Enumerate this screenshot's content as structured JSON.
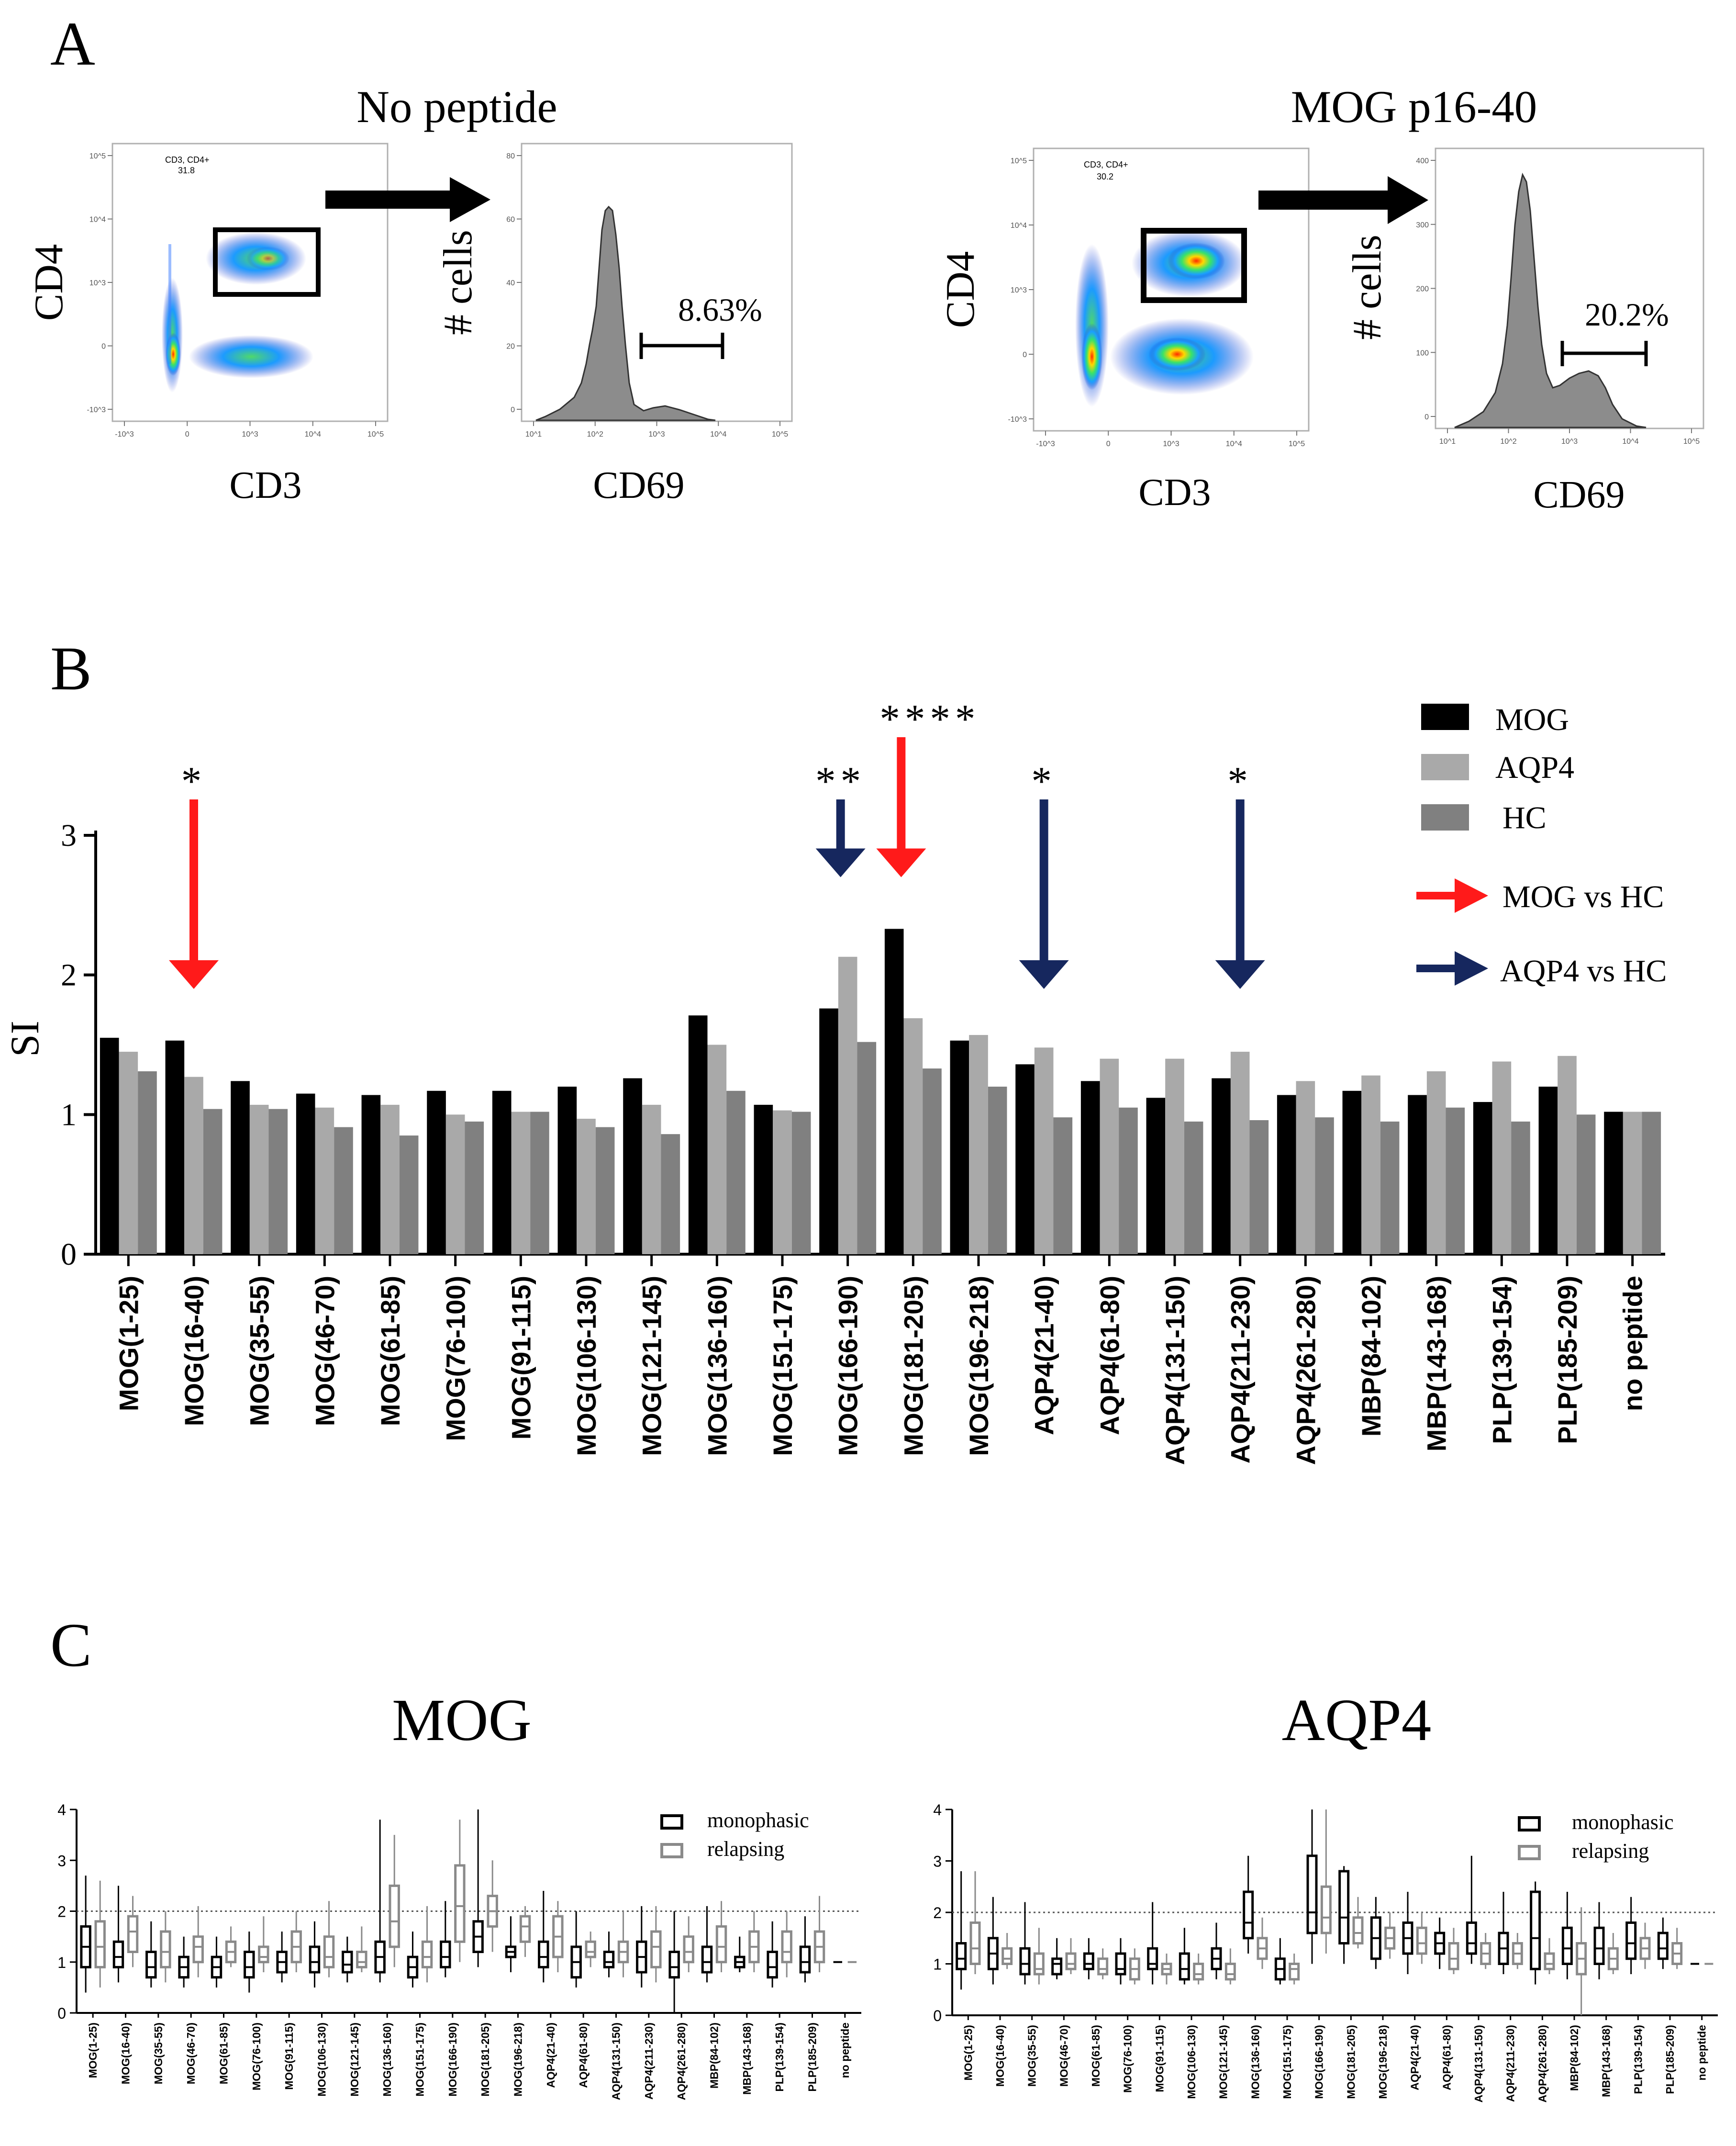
{
  "panel_labels": {
    "a": "A",
    "b": "B",
    "c": "C"
  },
  "panel_a": {
    "left": {
      "title": "No peptide",
      "dot_ylabel": "CD4",
      "dot_xlabel": "CD3",
      "gate_text_1": "CD3, CD4+",
      "gate_text_2": "31.8",
      "hist_ylabel": "# cells",
      "hist_xlabel": "CD69",
      "percent": "8.63%",
      "dot_yticks": [
        "10^5",
        "10^4",
        "10^3",
        "0",
        "-10^3"
      ],
      "dot_xticks": [
        "-10^3",
        "0",
        "10^3",
        "10^4",
        "10^5"
      ],
      "hist_yticks": [
        "80",
        "60",
        "40",
        "20",
        "0"
      ],
      "hist_xticks": [
        "10^1",
        "10^2",
        "10^3",
        "10^4",
        "10^5"
      ]
    },
    "right": {
      "title": "MOG p16-40",
      "dot_ylabel": "CD4",
      "dot_xlabel": "CD3",
      "gate_text_1": "CD3, CD4+",
      "gate_text_2": "30.2",
      "hist_ylabel": "# cells",
      "hist_xlabel": "CD69",
      "percent": "20.2%",
      "dot_yticks": [
        "10^5",
        "10^4",
        "10^3",
        "0",
        "-10^3"
      ],
      "dot_xticks": [
        "-10^3",
        "0",
        "10^3",
        "10^4",
        "10^5"
      ],
      "hist_yticks": [
        "400",
        "300",
        "200",
        "100",
        "0"
      ],
      "hist_xticks": [
        "10^1",
        "10^2",
        "10^3",
        "10^4",
        "10^5"
      ]
    }
  },
  "legend_b": {
    "mog": "MOG",
    "aqp4": "AQP4",
    "hc": "HC",
    "mog_vs_hc": "MOG vs HC",
    "aqp4_vs_hc": "AQP4 vs HC"
  },
  "colors": {
    "mog": "#000000",
    "aqp4": "#a9a9a9",
    "hc": "#808080",
    "red_arrow": "#ff1a1a",
    "navy_arrow": "#16275e"
  },
  "chart_data": [
    {
      "type": "bar",
      "title": "",
      "ylabel": "SI",
      "ylim": [
        0,
        3
      ],
      "yticks": [
        0,
        1,
        2,
        3
      ],
      "categories": [
        "MOG(1-25)",
        "MOG(16-40)",
        "MOG(35-55)",
        "MOG(46-70)",
        "MOG(61-85)",
        "MOG(76-100)",
        "MOG(91-115)",
        "MOG(106-130)",
        "MOG(121-145)",
        "MOG(136-160)",
        "MOG(151-175)",
        "MOG(166-190)",
        "MOG(181-205)",
        "MOG(196-218)",
        "AQP4(21-40)",
        "AQP4(61-80)",
        "AQP4(131-150)",
        "AQP4(211-230)",
        "AQP4(261-280)",
        "MBP(84-102)",
        "MBP(143-168)",
        "PLP(139-154)",
        "PLP(185-209)",
        "no peptide"
      ],
      "series": [
        {
          "name": "MOG",
          "values": [
            1.55,
            1.53,
            1.24,
            1.15,
            1.14,
            1.17,
            1.17,
            1.2,
            1.26,
            1.71,
            1.07,
            1.76,
            2.33,
            1.53,
            1.36,
            1.24,
            1.12,
            1.26,
            1.14,
            1.17,
            1.14,
            1.09,
            1.2,
            1.02
          ]
        },
        {
          "name": "AQP4",
          "values": [
            1.45,
            1.27,
            1.07,
            1.05,
            1.07,
            1.0,
            1.02,
            0.97,
            1.07,
            1.5,
            1.03,
            2.13,
            1.69,
            1.57,
            1.48,
            1.4,
            1.4,
            1.45,
            1.24,
            1.28,
            1.31,
            1.38,
            1.42,
            1.02
          ]
        },
        {
          "name": "HC",
          "values": [
            1.31,
            1.04,
            1.04,
            0.91,
            0.85,
            0.95,
            1.02,
            0.91,
            0.86,
            1.17,
            1.02,
            1.52,
            1.33,
            1.2,
            0.98,
            1.05,
            0.95,
            0.96,
            0.98,
            0.95,
            1.05,
            0.95,
            1.0,
            1.02
          ]
        }
      ],
      "annotations": [
        {
          "category": "MOG(16-40)",
          "text": "*",
          "arrow": "MOG vs HC"
        },
        {
          "category": "MOG(166-190)",
          "text": "**",
          "arrow": "AQP4 vs HC"
        },
        {
          "category": "MOG(181-205)",
          "text": "****",
          "arrow": "MOG vs HC"
        },
        {
          "category": "AQP4(21-40)",
          "text": "*",
          "arrow": "AQP4 vs HC"
        },
        {
          "category": "AQP4(211-230)",
          "text": "*",
          "arrow": "AQP4 vs HC"
        }
      ]
    },
    {
      "type": "box",
      "title": "MOG",
      "ylim": [
        0,
        4
      ],
      "yticks": [
        0,
        1,
        2,
        3,
        4
      ],
      "reference_line": 2,
      "legend": [
        "monophasic",
        "relapsing"
      ],
      "categories": [
        "MOG(1-25)",
        "MOG(16-40)",
        "MOG(35-55)",
        "MOG(46-70)",
        "MOG(61-85)",
        "MOG(76-100)",
        "MOG(91-115)",
        "MOG(106-130)",
        "MOG(121-145)",
        "MOG(136-160)",
        "MOG(151-175)",
        "MOG(166-190)",
        "MOG(181-205)",
        "MOG(196-218)",
        "AQP4(21-40)",
        "AQP4(61-80)",
        "AQP4(131-150)",
        "AQP4(211-230)",
        "AQP4(261-280)",
        "MBP(84-102)",
        "MBP(143-168)",
        "PLP(139-154)",
        "PLP(185-209)",
        "no peptide"
      ],
      "series": [
        {
          "name": "monophasic",
          "boxes": [
            [
              0.4,
              0.9,
              1.3,
              1.7,
              2.7
            ],
            [
              0.6,
              0.9,
              1.1,
              1.4,
              2.5
            ],
            [
              0.5,
              0.7,
              0.9,
              1.2,
              1.8
            ],
            [
              0.5,
              0.7,
              0.9,
              1.1,
              1.5
            ],
            [
              0.5,
              0.7,
              0.9,
              1.1,
              1.5
            ],
            [
              0.4,
              0.7,
              0.9,
              1.2,
              1.6
            ],
            [
              0.6,
              0.8,
              1.0,
              1.2,
              1.6
            ],
            [
              0.5,
              0.8,
              1.0,
              1.3,
              1.8
            ],
            [
              0.6,
              0.8,
              0.95,
              1.2,
              1.5
            ],
            [
              0.6,
              0.8,
              1.1,
              1.4,
              3.8
            ],
            [
              0.5,
              0.7,
              0.9,
              1.1,
              1.6
            ],
            [
              0.7,
              0.9,
              1.1,
              1.4,
              2.2
            ],
            [
              0.9,
              1.2,
              1.5,
              1.8,
              4.0
            ],
            [
              0.8,
              1.1,
              1.2,
              1.3,
              1.9
            ],
            [
              0.6,
              0.9,
              1.1,
              1.4,
              2.4
            ],
            [
              0.5,
              0.7,
              1.0,
              1.3,
              2.0
            ],
            [
              0.7,
              0.9,
              1.0,
              1.2,
              1.6
            ],
            [
              0.5,
              0.8,
              1.1,
              1.4,
              2.1
            ],
            [
              0.0,
              0.7,
              0.9,
              1.2,
              2.0
            ],
            [
              0.6,
              0.8,
              1.0,
              1.3,
              2.1
            ],
            [
              0.8,
              0.9,
              1.0,
              1.1,
              1.5
            ],
            [
              0.5,
              0.7,
              0.9,
              1.2,
              1.8
            ],
            [
              0.6,
              0.8,
              1.0,
              1.3,
              1.9
            ],
            [
              1.0,
              1.0,
              1.0,
              1.0,
              1.0
            ]
          ]
        },
        {
          "name": "relapsing",
          "boxes": [
            [
              0.5,
              0.9,
              1.3,
              1.8,
              2.6
            ],
            [
              0.9,
              1.2,
              1.6,
              1.9,
              2.3
            ],
            [
              0.6,
              0.9,
              1.2,
              1.6,
              2.0
            ],
            [
              0.7,
              1.0,
              1.3,
              1.5,
              2.1
            ],
            [
              0.9,
              1.0,
              1.2,
              1.4,
              1.7
            ],
            [
              0.8,
              1.0,
              1.1,
              1.3,
              1.9
            ],
            [
              0.8,
              1.0,
              1.3,
              1.6,
              2.0
            ],
            [
              0.7,
              0.9,
              1.1,
              1.5,
              2.2
            ],
            [
              0.8,
              0.9,
              1.0,
              1.2,
              1.7
            ],
            [
              0.9,
              1.3,
              1.8,
              2.5,
              3.5
            ],
            [
              0.6,
              0.9,
              1.1,
              1.4,
              2.1
            ],
            [
              1.0,
              1.4,
              2.1,
              2.9,
              3.8
            ],
            [
              1.2,
              1.7,
              2.0,
              2.3,
              3.0
            ],
            [
              1.1,
              1.4,
              1.7,
              1.9,
              2.1
            ],
            [
              0.8,
              1.1,
              1.5,
              1.9,
              2.2
            ],
            [
              0.9,
              1.1,
              1.2,
              1.4,
              1.6
            ],
            [
              0.7,
              1.0,
              1.2,
              1.4,
              2.0
            ],
            [
              0.6,
              0.9,
              1.3,
              1.6,
              2.1
            ],
            [
              0.8,
              1.0,
              1.2,
              1.5,
              1.9
            ],
            [
              0.8,
              1.0,
              1.3,
              1.7,
              2.2
            ],
            [
              0.8,
              1.0,
              1.3,
              1.6,
              2.0
            ],
            [
              0.7,
              1.0,
              1.2,
              1.6,
              2.0
            ],
            [
              0.8,
              1.0,
              1.3,
              1.6,
              2.3
            ],
            [
              1.0,
              1.0,
              1.0,
              1.0,
              1.0
            ]
          ]
        }
      ]
    },
    {
      "type": "box",
      "title": "AQP4",
      "ylim": [
        0,
        4
      ],
      "yticks": [
        0,
        1,
        2,
        3,
        4
      ],
      "reference_line": 2,
      "legend": [
        "monophasic",
        "relapsing"
      ],
      "categories": [
        "MOG(1-25)",
        "MOG(16-40)",
        "MOG(35-55)",
        "MOG(46-70)",
        "MOG(61-85)",
        "MOG(76-100)",
        "MOG(91-115)",
        "MOG(106-130)",
        "MOG(121-145)",
        "MOG(136-160)",
        "MOG(151-175)",
        "MOG(166-190)",
        "MOG(181-205)",
        "MOG(196-218)",
        "AQP4(21-40)",
        "AQP4(61-80)",
        "AQP4(131-150)",
        "AQP4(211-230)",
        "AQP4(261-280)",
        "MBP(84-102)",
        "MBP(143-168)",
        "PLP(139-154)",
        "PLP(185-209)",
        "no peptide"
      ],
      "series": [
        {
          "name": "monophasic",
          "boxes": [
            [
              0.5,
              0.9,
              1.1,
              1.4,
              2.8
            ],
            [
              0.6,
              0.9,
              1.2,
              1.5,
              2.3
            ],
            [
              0.6,
              0.8,
              1.0,
              1.3,
              2.2
            ],
            [
              0.7,
              0.8,
              1.0,
              1.1,
              1.5
            ],
            [
              0.7,
              0.9,
              1.0,
              1.2,
              1.5
            ],
            [
              0.6,
              0.8,
              0.9,
              1.2,
              1.5
            ],
            [
              0.6,
              0.9,
              1.0,
              1.3,
              2.2
            ],
            [
              0.6,
              0.7,
              0.9,
              1.2,
              1.7
            ],
            [
              0.7,
              0.9,
              1.1,
              1.3,
              1.8
            ],
            [
              1.2,
              1.5,
              1.8,
              2.4,
              3.1
            ],
            [
              0.6,
              0.7,
              0.9,
              1.1,
              1.5
            ],
            [
              1.0,
              1.6,
              2.0,
              3.1,
              4.0
            ],
            [
              1.0,
              1.4,
              1.9,
              2.8,
              2.9
            ],
            [
              0.9,
              1.1,
              1.5,
              1.9,
              2.3
            ],
            [
              0.8,
              1.2,
              1.5,
              1.8,
              2.4
            ],
            [
              0.9,
              1.2,
              1.4,
              1.6,
              1.9
            ],
            [
              1.0,
              1.2,
              1.4,
              1.8,
              3.1
            ],
            [
              0.8,
              1.0,
              1.3,
              1.6,
              2.4
            ],
            [
              0.6,
              0.9,
              1.5,
              2.4,
              2.6
            ],
            [
              0.7,
              1.0,
              1.3,
              1.7,
              2.4
            ],
            [
              0.7,
              1.0,
              1.3,
              1.7,
              2.2
            ],
            [
              0.8,
              1.1,
              1.4,
              1.8,
              2.3
            ],
            [
              0.9,
              1.1,
              1.3,
              1.6,
              1.9
            ],
            [
              1.0,
              1.0,
              1.0,
              1.0,
              1.0
            ]
          ]
        },
        {
          "name": "relapsing",
          "boxes": [
            [
              0.8,
              1.0,
              1.3,
              1.8,
              2.8
            ],
            [
              0.9,
              1.0,
              1.1,
              1.3,
              1.6
            ],
            [
              0.6,
              0.8,
              0.9,
              1.2,
              1.7
            ],
            [
              0.8,
              0.9,
              1.0,
              1.2,
              1.5
            ],
            [
              0.7,
              0.8,
              0.9,
              1.1,
              1.3
            ],
            [
              0.6,
              0.7,
              0.9,
              1.1,
              1.3
            ],
            [
              0.6,
              0.8,
              0.9,
              1.0,
              1.2
            ],
            [
              0.6,
              0.7,
              0.8,
              1.0,
              1.2
            ],
            [
              0.6,
              0.7,
              0.8,
              1.0,
              1.3
            ],
            [
              0.9,
              1.1,
              1.3,
              1.5,
              1.9
            ],
            [
              0.6,
              0.7,
              0.9,
              1.0,
              1.2
            ],
            [
              1.2,
              1.6,
              1.9,
              2.5,
              4.0
            ],
            [
              1.3,
              1.4,
              1.6,
              1.9,
              2.3
            ],
            [
              1.1,
              1.3,
              1.5,
              1.7,
              2.0
            ],
            [
              1.0,
              1.2,
              1.4,
              1.7,
              2.0
            ],
            [
              0.8,
              0.9,
              1.1,
              1.4,
              1.7
            ],
            [
              0.9,
              1.0,
              1.2,
              1.4,
              1.6
            ],
            [
              0.9,
              1.0,
              1.2,
              1.4,
              1.6
            ],
            [
              0.8,
              0.9,
              1.0,
              1.2,
              1.5
            ],
            [
              0.0,
              0.8,
              1.1,
              1.4,
              2.1
            ],
            [
              0.8,
              0.9,
              1.1,
              1.3,
              1.6
            ],
            [
              0.9,
              1.1,
              1.3,
              1.5,
              1.8
            ],
            [
              0.9,
              1.0,
              1.2,
              1.4,
              1.7
            ],
            [
              1.0,
              1.0,
              1.0,
              1.0,
              1.0
            ]
          ]
        }
      ]
    }
  ]
}
